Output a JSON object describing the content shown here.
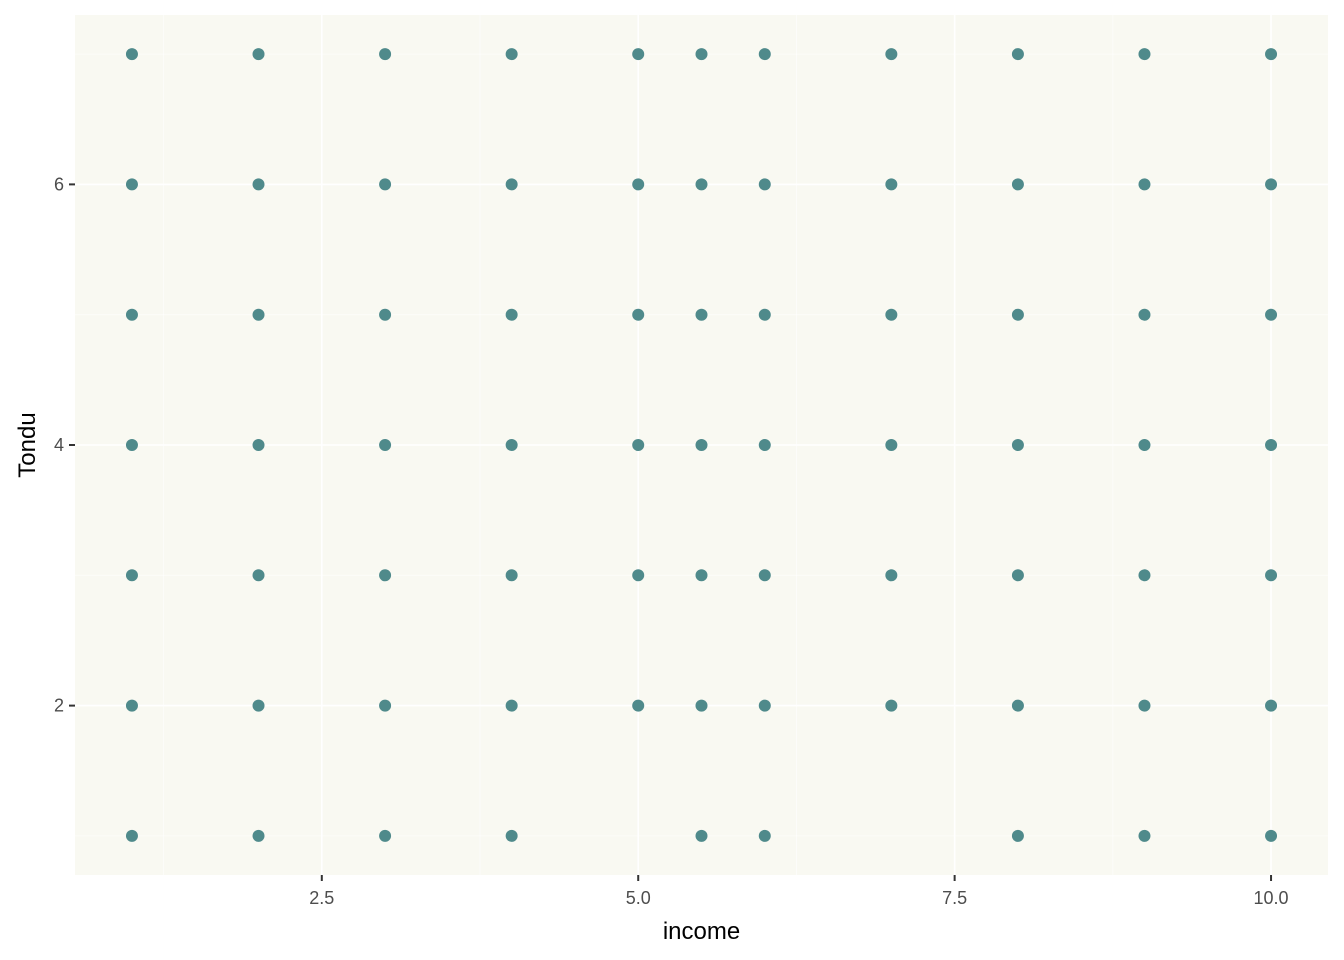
{
  "chart_data": {
    "type": "scatter",
    "title": "",
    "xlabel": "income",
    "ylabel": "Tondu",
    "xlim": [
      0.55,
      10.45
    ],
    "ylim": [
      0.7,
      7.3
    ],
    "x_ticks": [
      2.5,
      5.0,
      7.5,
      10.0
    ],
    "x_tick_labels": [
      "2.5",
      "5.0",
      "7.5",
      "10.0"
    ],
    "y_ticks": [
      2,
      4,
      6
    ],
    "y_tick_labels": [
      "2",
      "4",
      "6"
    ],
    "grid": true,
    "legend": "none",
    "colors": {
      "panel_background": "#f9f9f2",
      "grid": "#ffffff",
      "point": "#4f8a8b",
      "tick": "#333333"
    },
    "series": [
      {
        "points": [
          {
            "x": 1,
            "y": 7
          },
          {
            "x": 2,
            "y": 7
          },
          {
            "x": 3,
            "y": 7
          },
          {
            "x": 4,
            "y": 7
          },
          {
            "x": 5,
            "y": 7
          },
          {
            "x": 5.5,
            "y": 7
          },
          {
            "x": 6,
            "y": 7
          },
          {
            "x": 7,
            "y": 7
          },
          {
            "x": 8,
            "y": 7
          },
          {
            "x": 9,
            "y": 7
          },
          {
            "x": 10,
            "y": 7
          },
          {
            "x": 1,
            "y": 6
          },
          {
            "x": 2,
            "y": 6
          },
          {
            "x": 3,
            "y": 6
          },
          {
            "x": 4,
            "y": 6
          },
          {
            "x": 5,
            "y": 6
          },
          {
            "x": 5.5,
            "y": 6
          },
          {
            "x": 6,
            "y": 6
          },
          {
            "x": 7,
            "y": 6
          },
          {
            "x": 8,
            "y": 6
          },
          {
            "x": 9,
            "y": 6
          },
          {
            "x": 10,
            "y": 6
          },
          {
            "x": 1,
            "y": 5
          },
          {
            "x": 2,
            "y": 5
          },
          {
            "x": 3,
            "y": 5
          },
          {
            "x": 4,
            "y": 5
          },
          {
            "x": 5,
            "y": 5
          },
          {
            "x": 5.5,
            "y": 5
          },
          {
            "x": 6,
            "y": 5
          },
          {
            "x": 7,
            "y": 5
          },
          {
            "x": 8,
            "y": 5
          },
          {
            "x": 9,
            "y": 5
          },
          {
            "x": 10,
            "y": 5
          },
          {
            "x": 1,
            "y": 4
          },
          {
            "x": 2,
            "y": 4
          },
          {
            "x": 3,
            "y": 4
          },
          {
            "x": 4,
            "y": 4
          },
          {
            "x": 5,
            "y": 4
          },
          {
            "x": 5.5,
            "y": 4
          },
          {
            "x": 6,
            "y": 4
          },
          {
            "x": 7,
            "y": 4
          },
          {
            "x": 8,
            "y": 4
          },
          {
            "x": 9,
            "y": 4
          },
          {
            "x": 10,
            "y": 4
          },
          {
            "x": 1,
            "y": 3
          },
          {
            "x": 2,
            "y": 3
          },
          {
            "x": 3,
            "y": 3
          },
          {
            "x": 4,
            "y": 3
          },
          {
            "x": 5,
            "y": 3
          },
          {
            "x": 5.5,
            "y": 3
          },
          {
            "x": 6,
            "y": 3
          },
          {
            "x": 7,
            "y": 3
          },
          {
            "x": 8,
            "y": 3
          },
          {
            "x": 9,
            "y": 3
          },
          {
            "x": 10,
            "y": 3
          },
          {
            "x": 1,
            "y": 2
          },
          {
            "x": 2,
            "y": 2
          },
          {
            "x": 3,
            "y": 2
          },
          {
            "x": 4,
            "y": 2
          },
          {
            "x": 5,
            "y": 2
          },
          {
            "x": 5.5,
            "y": 2
          },
          {
            "x": 6,
            "y": 2
          },
          {
            "x": 7,
            "y": 2
          },
          {
            "x": 8,
            "y": 2
          },
          {
            "x": 9,
            "y": 2
          },
          {
            "x": 10,
            "y": 2
          },
          {
            "x": 1,
            "y": 1
          },
          {
            "x": 2,
            "y": 1
          },
          {
            "x": 3,
            "y": 1
          },
          {
            "x": 4,
            "y": 1
          },
          {
            "x": 5.5,
            "y": 1
          },
          {
            "x": 6,
            "y": 1
          },
          {
            "x": 8,
            "y": 1
          },
          {
            "x": 9,
            "y": 1
          },
          {
            "x": 10,
            "y": 1
          }
        ]
      }
    ]
  }
}
